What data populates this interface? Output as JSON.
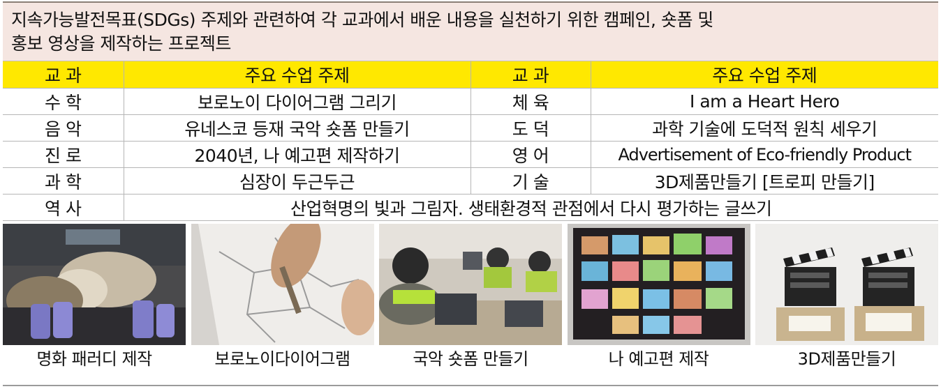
{
  "intro": {
    "line1": "지속가능발전목표(SDGs) 주제와 관련하여 각 교과에서 배운 내용을 실천하기 위한 캠페인, 숏폼 및",
    "line2": "홍보 영상을 제작하는 프로젝트"
  },
  "table": {
    "headers": [
      "교 과",
      "주요 수업 주제",
      "교 과",
      "주요 수업 주제"
    ],
    "rows": [
      [
        "수 학",
        "보로노이 다이어그램 그리기",
        "체 육",
        "I am a Heart Hero"
      ],
      [
        "음 악",
        "유네스코 등재 국악 숏폼 만들기",
        "도 덕",
        "과학 기술에 도덕적 원칙 세우기"
      ],
      [
        "진 로",
        "2040년, 나 예고편 제작하기",
        "영 어",
        "Advertisement of Eco-friendly Product"
      ],
      [
        "과 학",
        "심장이 두근두근",
        "기 술",
        "3D제품만들기 [트로피 만들기]"
      ]
    ],
    "last_row": {
      "subject": "역 사",
      "topic": "산업혁명의 빛과 그림자.  생태환경적 관점에서 다시 평가하는 글쓰기"
    }
  },
  "photos": [
    {
      "caption": "명화 패러디 제작",
      "icon": "painting-parody-photo"
    },
    {
      "caption": "보로노이다이어그램",
      "icon": "voronoi-drawing-photo"
    },
    {
      "caption": "국악 숏폼 만들기",
      "icon": "classroom-laptops-photo"
    },
    {
      "caption": "나 예고편 제작",
      "icon": "poster-board-photo"
    },
    {
      "caption": "3D제품만들기",
      "icon": "clapperboard-trophy-photo"
    }
  ],
  "colors": {
    "header_yellow": "#ffe800",
    "intro_background": "#f5e6e1",
    "table_border": "#b5b5b5"
  }
}
